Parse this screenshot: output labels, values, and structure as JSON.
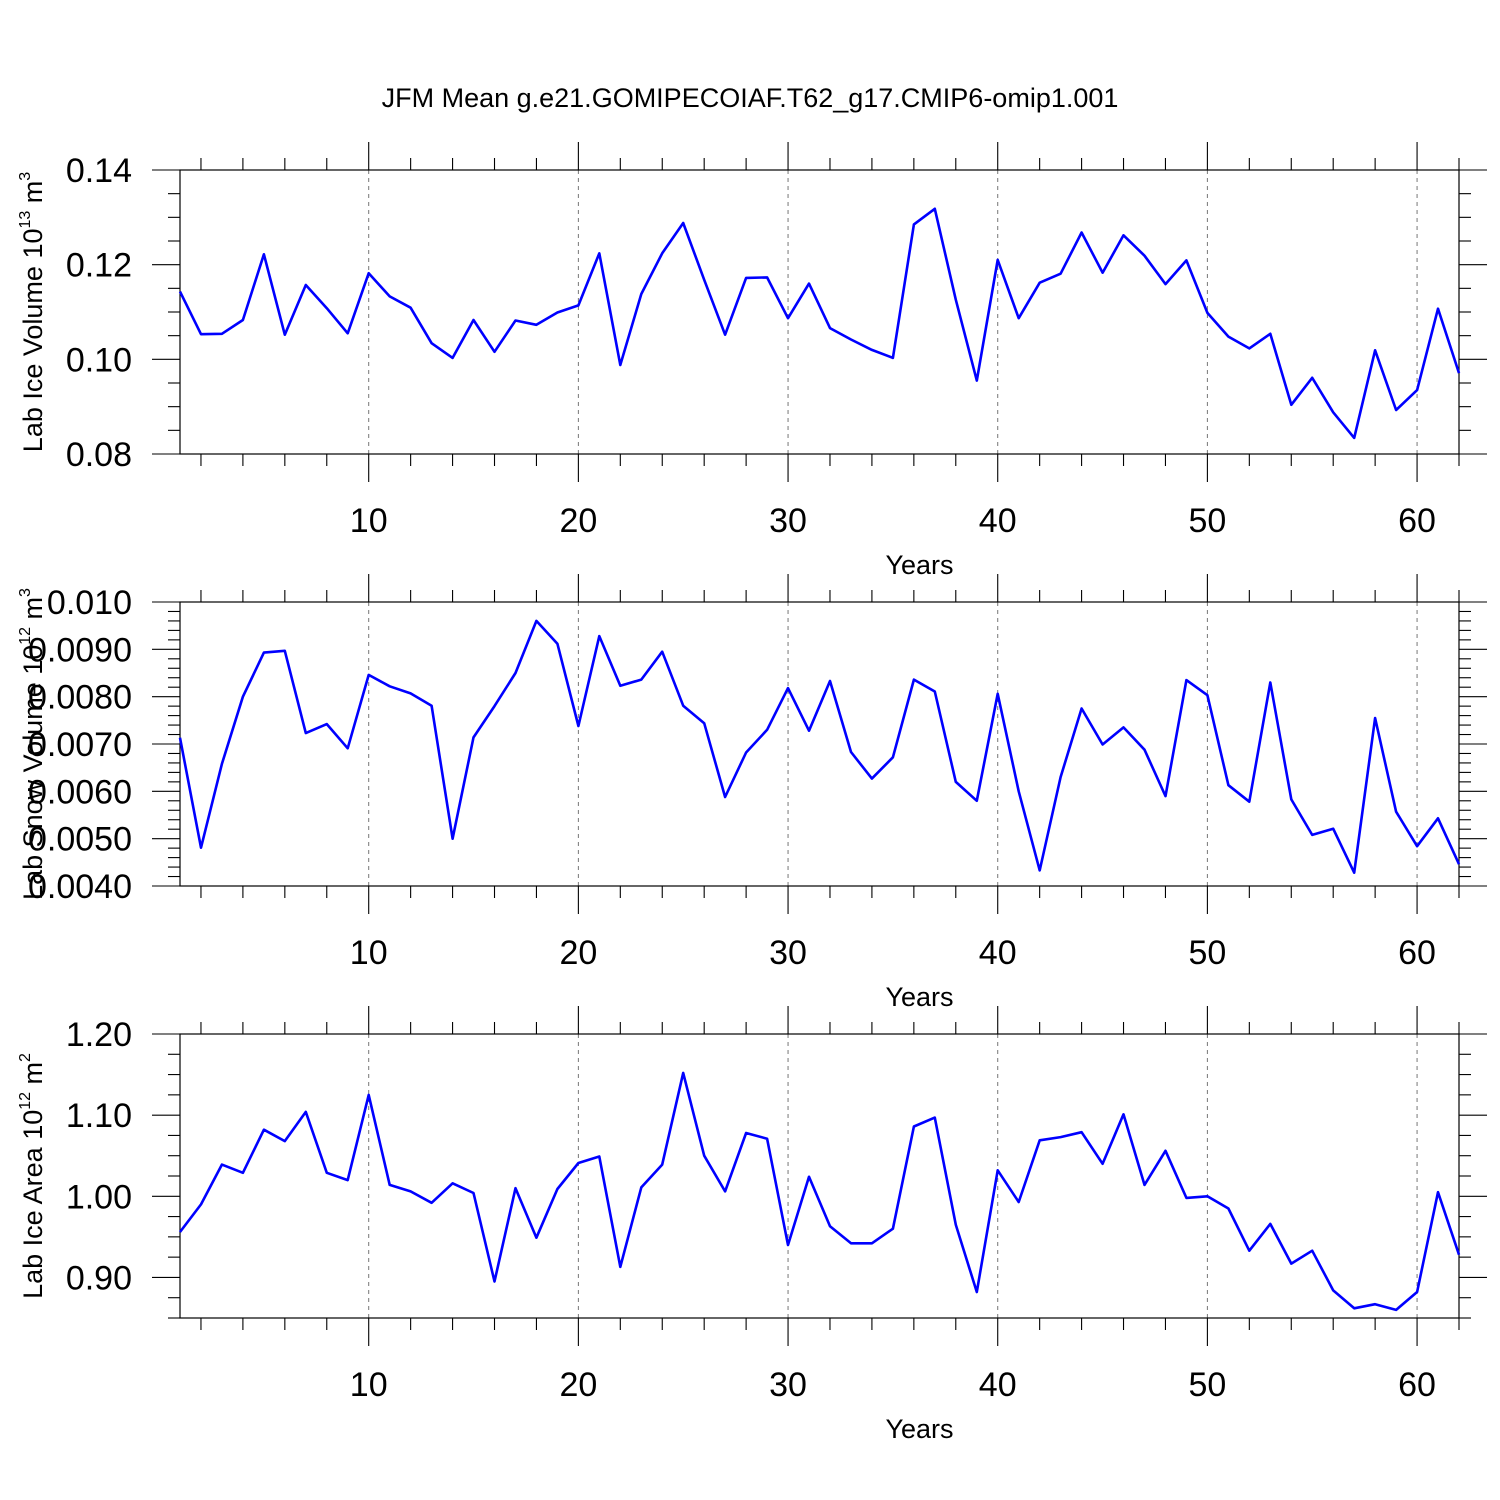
{
  "title": "JFM Mean g.e21.GOMIPECOIAF.T62_g17.CMIP6-omip1.001",
  "colors": {
    "series": "#0000ff",
    "axes": "#000000",
    "grid": "#777777"
  },
  "chart_data": [
    {
      "type": "line",
      "ylabel": "Lab Ice Volume 10",
      "ylabel_exp": "13",
      "ylabel_unit": " m",
      "ylabel_unit_exp": "3",
      "xlabel": "Years",
      "xlim": [
        1,
        62
      ],
      "ylim": [
        0.08,
        0.14
      ],
      "xticks": [
        10,
        20,
        30,
        40,
        50,
        60
      ],
      "xticklabels": [
        "10",
        "20",
        "30",
        "40",
        "50",
        "60"
      ],
      "yticks": [
        0.08,
        0.1,
        0.12,
        0.14
      ],
      "yticklabels": [
        "0.08",
        "0.10",
        "0.12",
        "0.14"
      ],
      "y_minor_step": 0.005,
      "grid": "vertical dashed at major x ticks",
      "x": [
        1,
        2,
        3,
        4,
        5,
        6,
        7,
        8,
        9,
        10,
        11,
        12,
        13,
        14,
        15,
        16,
        17,
        18,
        19,
        20,
        21,
        22,
        23,
        24,
        25,
        26,
        27,
        28,
        29,
        30,
        31,
        32,
        33,
        34,
        35,
        36,
        37,
        38,
        39,
        40,
        41,
        42,
        43,
        44,
        45,
        46,
        47,
        48,
        49,
        50,
        51,
        52,
        53,
        54,
        55,
        56,
        57,
        58,
        59,
        60,
        61,
        62
      ],
      "values": [
        0.1143,
        0.1053,
        0.1054,
        0.1083,
        0.1222,
        0.1052,
        0.1157,
        0.1108,
        0.1055,
        0.1182,
        0.1133,
        0.1109,
        0.1034,
        0.1003,
        0.1083,
        0.1016,
        0.1082,
        0.1073,
        0.1099,
        0.1114,
        0.1224,
        0.0988,
        0.1138,
        0.1224,
        0.1288,
        0.1168,
        0.1052,
        0.1172,
        0.1173,
        0.1087,
        0.116,
        0.1066,
        0.1042,
        0.102,
        0.1003,
        0.1285,
        0.1318,
        0.1126,
        0.0955,
        0.121,
        0.1087,
        0.1162,
        0.1181,
        0.1268,
        0.1183,
        0.1262,
        0.1219,
        0.1159,
        0.1209,
        0.1098,
        0.1048,
        0.1023,
        0.1054,
        0.0904,
        0.0961,
        0.0888,
        0.0834,
        0.1019,
        0.0893,
        0.0935,
        0.1107,
        0.0971
      ]
    },
    {
      "type": "line",
      "ylabel": "Lab Snow Volume 10",
      "ylabel_exp": "12",
      "ylabel_unit": " m",
      "ylabel_unit_exp": "3",
      "xlabel": "Years",
      "xlim": [
        1,
        62
      ],
      "ylim": [
        0.004,
        0.01
      ],
      "xticks": [
        10,
        20,
        30,
        40,
        50,
        60
      ],
      "xticklabels": [
        "10",
        "20",
        "30",
        "40",
        "50",
        "60"
      ],
      "yticks": [
        0.004,
        0.005,
        0.006,
        0.007,
        0.008,
        0.009,
        0.01
      ],
      "yticklabels": [
        "0.0040",
        "0.0050",
        "0.0060",
        "0.0070",
        "0.0080",
        "0.0090",
        "0.010"
      ],
      "y_minor_step": 0.0002,
      "grid": "vertical dashed at major x ticks",
      "x": [
        1,
        2,
        3,
        4,
        5,
        6,
        7,
        8,
        9,
        10,
        11,
        12,
        13,
        14,
        15,
        16,
        17,
        18,
        19,
        20,
        21,
        22,
        23,
        24,
        25,
        26,
        27,
        28,
        29,
        30,
        31,
        32,
        33,
        34,
        35,
        36,
        37,
        38,
        39,
        40,
        41,
        42,
        43,
        44,
        45,
        46,
        47,
        48,
        49,
        50,
        51,
        52,
        53,
        54,
        55,
        56,
        57,
        58,
        59,
        60,
        61,
        62
      ],
      "values": [
        0.00713,
        0.00481,
        0.00658,
        0.008,
        0.00893,
        0.00897,
        0.00723,
        0.00742,
        0.00691,
        0.00846,
        0.00822,
        0.00807,
        0.00781,
        0.005,
        0.00714,
        0.0078,
        0.0085,
        0.0096,
        0.00912,
        0.00738,
        0.00928,
        0.00823,
        0.00836,
        0.00895,
        0.00781,
        0.00744,
        0.00588,
        0.00682,
        0.0073,
        0.00818,
        0.00728,
        0.00833,
        0.00683,
        0.00627,
        0.00672,
        0.00836,
        0.00811,
        0.0062,
        0.0058,
        0.00806,
        0.006,
        0.00433,
        0.0063,
        0.00775,
        0.00699,
        0.00735,
        0.00688,
        0.0059,
        0.00835,
        0.00803,
        0.00613,
        0.00578,
        0.0083,
        0.00583,
        0.00508,
        0.00521,
        0.00428,
        0.00755,
        0.00557,
        0.00484,
        0.00543,
        0.00446
      ]
    },
    {
      "type": "line",
      "ylabel": "Lab Ice Area 10",
      "ylabel_exp": "12",
      "ylabel_unit": " m",
      "ylabel_unit_exp": "2",
      "xlabel": "Years",
      "xlim": [
        1,
        62
      ],
      "ylim": [
        0.85,
        1.2
      ],
      "xticks": [
        10,
        20,
        30,
        40,
        50,
        60
      ],
      "xticklabels": [
        "10",
        "20",
        "30",
        "40",
        "50",
        "60"
      ],
      "yticks": [
        0.9,
        1.0,
        1.1,
        1.2
      ],
      "yticklabels": [
        "0.90",
        "1.00",
        "1.10",
        "1.20"
      ],
      "y_minor_step": 0.025,
      "grid": "vertical dashed at major x ticks",
      "x": [
        1,
        2,
        3,
        4,
        5,
        6,
        7,
        8,
        9,
        10,
        11,
        12,
        13,
        14,
        15,
        16,
        17,
        18,
        19,
        20,
        21,
        22,
        23,
        24,
        25,
        26,
        27,
        28,
        29,
        30,
        31,
        32,
        33,
        34,
        35,
        36,
        37,
        38,
        39,
        40,
        41,
        42,
        43,
        44,
        45,
        46,
        47,
        48,
        49,
        50,
        51,
        52,
        53,
        54,
        55,
        56,
        57,
        58,
        59,
        60,
        61,
        62
      ],
      "values": [
        0.956,
        0.99,
        1.039,
        1.029,
        1.082,
        1.068,
        1.104,
        1.029,
        1.02,
        1.125,
        1.014,
        1.006,
        0.992,
        1.016,
        1.004,
        0.895,
        1.01,
        0.949,
        1.009,
        1.041,
        1.049,
        0.913,
        1.011,
        1.039,
        1.152,
        1.05,
        1.006,
        1.078,
        1.071,
        0.94,
        1.024,
        0.963,
        0.942,
        0.942,
        0.96,
        1.086,
        1.097,
        0.965,
        0.882,
        1.032,
        0.993,
        1.069,
        1.073,
        1.079,
        1.04,
        1.101,
        1.014,
        1.056,
        0.998,
        1.0,
        0.985,
        0.933,
        0.966,
        0.917,
        0.933,
        0.884,
        0.862,
        0.867,
        0.86,
        0.882,
        1.005,
        0.928
      ]
    }
  ]
}
